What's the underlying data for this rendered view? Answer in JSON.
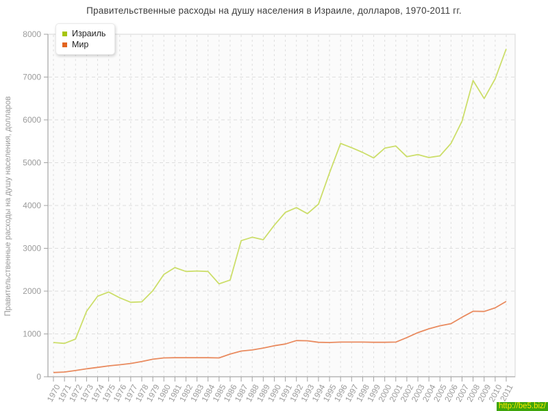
{
  "watermark": "http://be5.biz/",
  "colors": {
    "page_bg": "#ffffff",
    "plot_bg": "#fbfbfb",
    "frame": "#e3e3e3",
    "grid": "#dedede",
    "axis": "#a0a0a0",
    "tick_label": "#9a9a9a",
    "title_text": "#3b3b3b",
    "legend_text": "#222222",
    "israel_swatch": "#a6c50e",
    "israel_line": "#ccde69",
    "world_swatch": "#e2641f",
    "world_line": "#e98a5e",
    "watermark_bg": "#3fa60b",
    "watermark_text": "#ffe600"
  },
  "chart_data": {
    "type": "line",
    "title": "Правительственные расходы на душу населения в Израиле, долларов, 1970-2011 гг.",
    "xlabel": "",
    "ylabel": "Правительственные расходы на душу населения, долларов",
    "ylim": [
      0,
      8000
    ],
    "ytick_interval": 1000,
    "grid": true,
    "legend_position": "top-left",
    "categories": [
      "1970",
      "1971",
      "1972",
      "1973",
      "1974",
      "1975",
      "1976",
      "1977",
      "1978",
      "1979",
      "1980",
      "1981",
      "1982",
      "1983",
      "1984",
      "1985",
      "1986",
      "1987",
      "1988",
      "1989",
      "1990",
      "1991",
      "1992",
      "1993",
      "1994",
      "1995",
      "1996",
      "1997",
      "1998",
      "1999",
      "2000",
      "2001",
      "2002",
      "2003",
      "2004",
      "2005",
      "2006",
      "2007",
      "2008",
      "2009",
      "2010",
      "2011"
    ],
    "series": [
      {
        "id": "israel",
        "name": "Израиль",
        "swatch_color": "#a6c50e",
        "line_color": "#ccde69",
        "values": [
          800,
          780,
          880,
          1530,
          1880,
          1980,
          1845,
          1740,
          1750,
          2010,
          2390,
          2550,
          2460,
          2470,
          2460,
          2170,
          2260,
          3180,
          3260,
          3200,
          3540,
          3840,
          3950,
          3810,
          4030,
          4760,
          5450,
          5350,
          5240,
          5110,
          5340,
          5390,
          5140,
          5190,
          5120,
          5160,
          5450,
          5970,
          6920,
          6500,
          6960,
          7660
        ]
      },
      {
        "id": "world",
        "name": "Мир",
        "swatch_color": "#e2641f",
        "line_color": "#e98a5e",
        "values": [
          100,
          110,
          145,
          185,
          220,
          255,
          280,
          310,
          355,
          410,
          440,
          445,
          445,
          445,
          445,
          440,
          530,
          600,
          625,
          670,
          725,
          765,
          845,
          840,
          805,
          800,
          810,
          810,
          810,
          805,
          805,
          810,
          915,
          1030,
          1120,
          1190,
          1240,
          1390,
          1530,
          1525,
          1610,
          1760
        ]
      }
    ]
  }
}
